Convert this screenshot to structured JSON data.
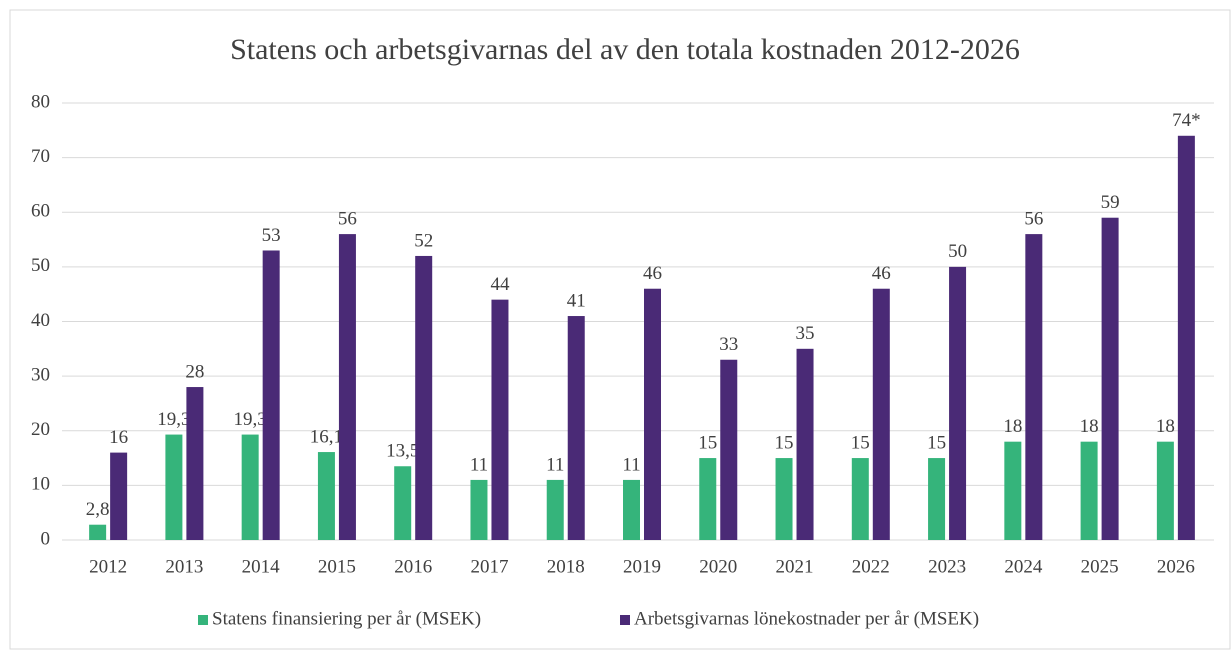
{
  "chart_data": {
    "type": "bar",
    "title": "Statens och arbetsgivarnas del av den totala kostnaden 2012-2026",
    "categories": [
      "2012",
      "2013",
      "2014",
      "2015",
      "2016",
      "2017",
      "2018",
      "2019",
      "2020",
      "2021",
      "2022",
      "2023",
      "2024",
      "2025",
      "2026"
    ],
    "series": [
      {
        "name": "Statens finansiering per år (MSEK)",
        "color": "#35b47b",
        "values": [
          2.8,
          19.3,
          19.3,
          16.1,
          13.5,
          11,
          11,
          11,
          15,
          15,
          15,
          15,
          18,
          18,
          18
        ],
        "value_labels": [
          "2,8",
          "19,3",
          "19,3",
          "16,1",
          "13,5",
          "11",
          "11",
          "11",
          "15",
          "15",
          "15",
          "15",
          "18",
          "18",
          "18"
        ]
      },
      {
        "name": "Arbetsgivarnas lönekostnader per år (MSEK)",
        "color": "#4a2a76",
        "values": [
          16,
          28,
          53,
          56,
          52,
          44,
          41,
          46,
          33,
          35,
          46,
          50,
          56,
          59,
          74
        ],
        "value_labels": [
          "16",
          "28",
          "53",
          "56",
          "52",
          "44",
          "41",
          "46",
          "33",
          "35",
          "46",
          "50",
          "56",
          "59",
          "74*"
        ]
      }
    ],
    "ylim": [
      0,
      80
    ],
    "yticks": [
      0,
      10,
      20,
      30,
      40,
      50,
      60,
      70,
      80
    ],
    "grid": true,
    "legend": "bottom"
  }
}
